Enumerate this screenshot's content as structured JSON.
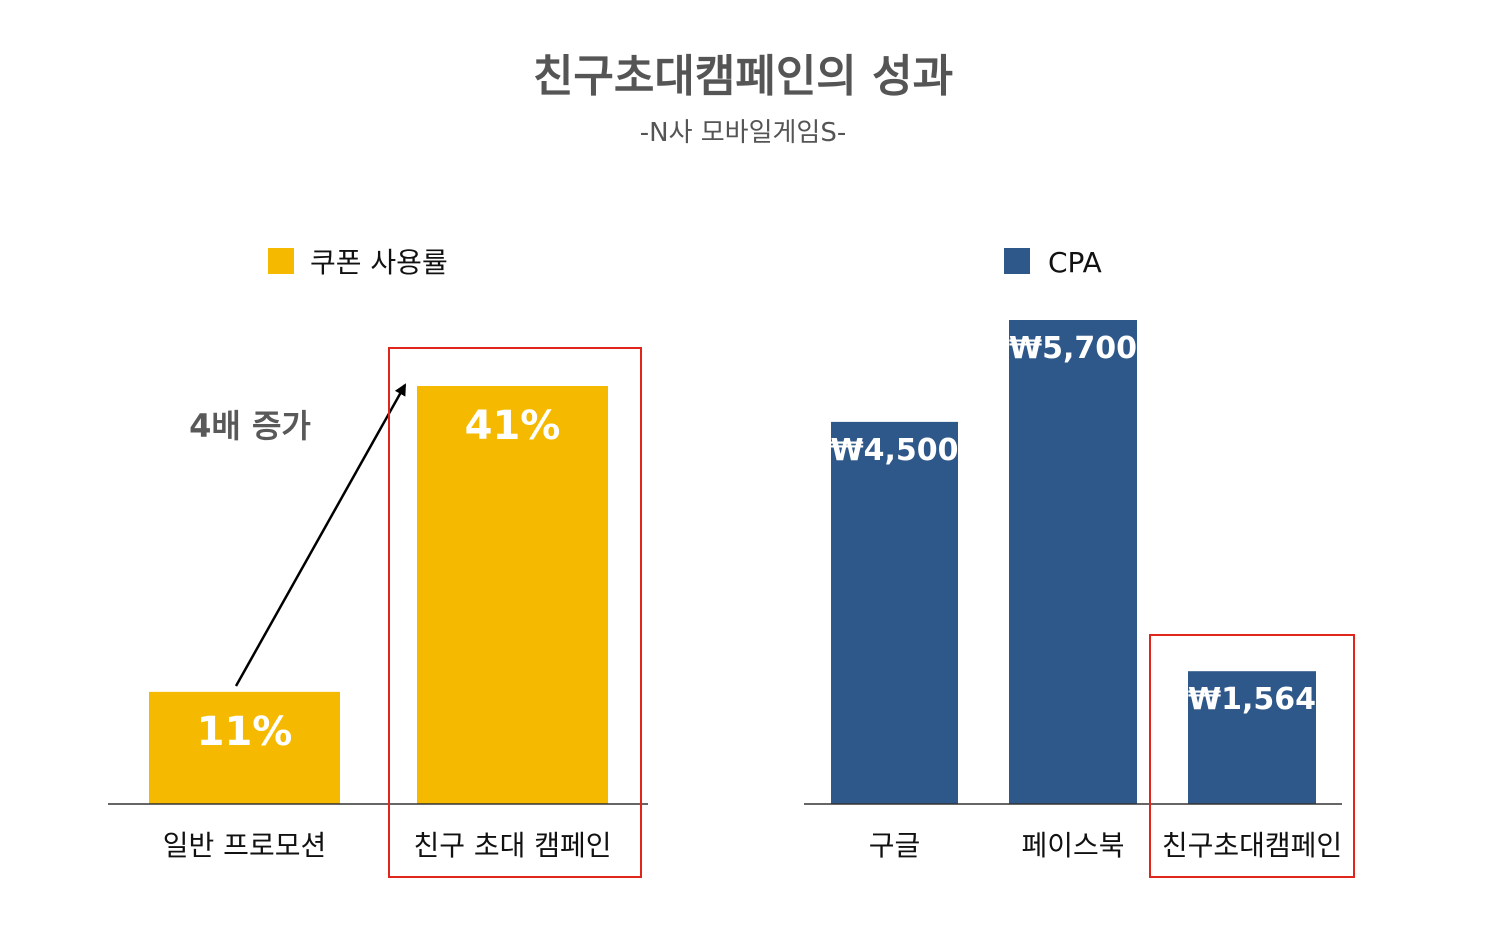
{
  "title": "친구초대캠페인의 성과",
  "subtitle": "-N사 모바일게임S-",
  "chart_data": [
    {
      "type": "bar",
      "legend": "쿠폰 사용률",
      "color": "#F5BA00",
      "categories": [
        "일반 프로모션",
        "친구 초대 캠페인"
      ],
      "values": [
        11,
        41
      ],
      "labels": [
        "11%",
        "41%"
      ],
      "ylim": [
        0,
        41
      ],
      "annotation": "4배 증가",
      "highlight": "친구 초대 캠페인"
    },
    {
      "type": "bar",
      "legend": "CPA",
      "color": "#2E578A",
      "categories": [
        "구글",
        "페이스북",
        "친구초대캠페인"
      ],
      "values": [
        4500,
        5700,
        1564
      ],
      "labels": [
        "₩4,500",
        "₩5,700",
        "₩1,564"
      ],
      "ylim": [
        0,
        5700
      ],
      "highlight": "친구초대캠페인"
    }
  ],
  "highlight_color": "#E0251B"
}
